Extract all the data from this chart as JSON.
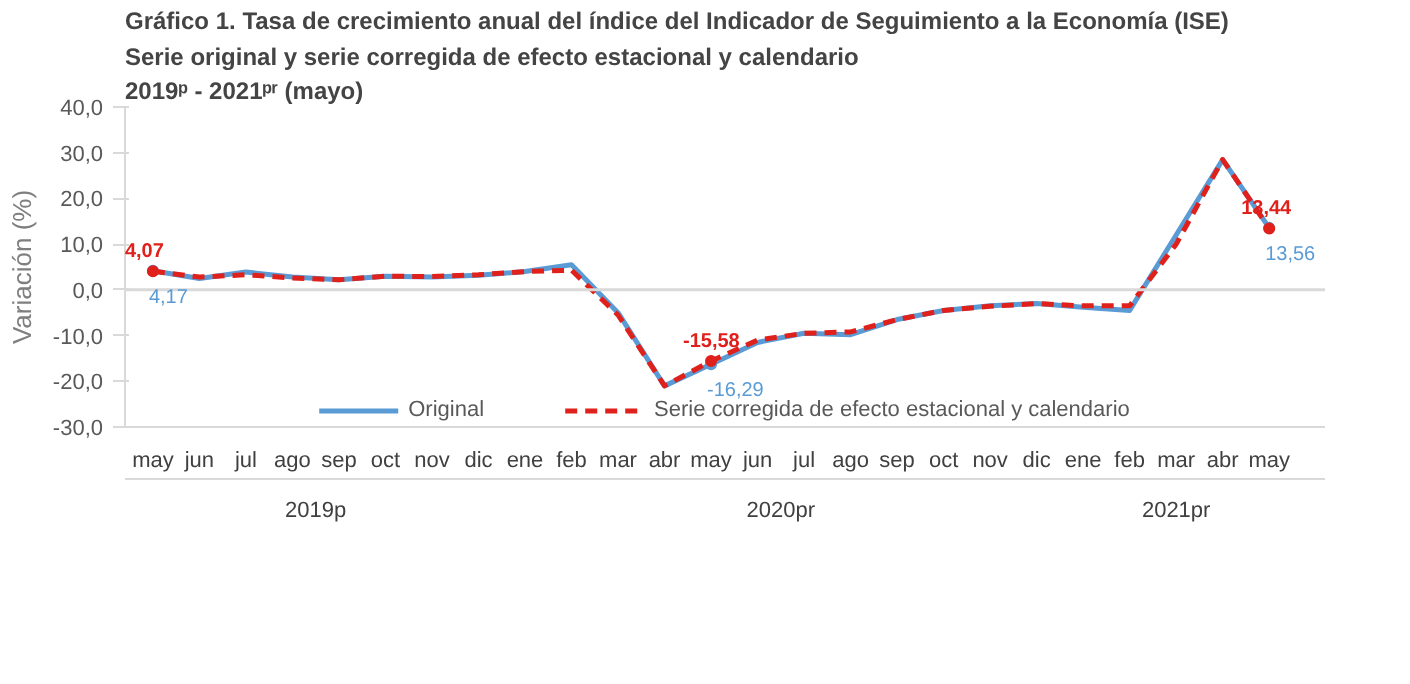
{
  "chart_data": {
    "type": "line",
    "title": "Gráfico 1. Tasa de crecimiento anual del índice del Indicador de Seguimiento a la Economía (ISE)",
    "subtitle": "Serie original y serie corregida de efecto estacional y calendario\n2019ᵖ - 2021ᵖʳ (mayo)",
    "ylabel": "Variación (%)",
    "categories": [
      "may",
      "jun",
      "jul",
      "ago",
      "sep",
      "oct",
      "nov",
      "dic",
      "ene",
      "feb",
      "mar",
      "abr",
      "may",
      "jun",
      "jul",
      "ago",
      "sep",
      "oct",
      "nov",
      "dic",
      "ene",
      "feb",
      "mar",
      "abr",
      "may"
    ],
    "annotations": [
      "2019p",
      "2020pr",
      "2021pr"
    ],
    "ylim": [
      -30,
      40
    ],
    "yticks": [
      {
        "value": -30,
        "label": "-30,0"
      },
      {
        "value": -20,
        "label": "-20,0"
      },
      {
        "value": -10,
        "label": "-10,0"
      },
      {
        "value": 0,
        "label": "0,0"
      },
      {
        "value": 10,
        "label": "10,0"
      },
      {
        "value": 20,
        "label": "20,0"
      },
      {
        "value": 30,
        "label": "30,0"
      },
      {
        "value": 40,
        "label": "40,0"
      }
    ],
    "ref_lines": [
      {
        "axis": "y",
        "value": 0,
        "color": "#d9d9d9"
      }
    ],
    "legend": "bottom",
    "series": [
      {
        "name": "Original",
        "color": "#5b9bd5",
        "line_style": "solid",
        "values": [
          4.17,
          2.5,
          3.9,
          2.8,
          2.2,
          3.0,
          2.8,
          3.2,
          4.0,
          5.5,
          -5,
          -21,
          -16.29,
          -11.5,
          -9.5,
          -9.8,
          -6.5,
          -4.5,
          -3.5,
          -3.0,
          -3.8,
          -4.5,
          12,
          28.5,
          13.56
        ],
        "value_labels": [
          "4,17",
          null,
          null,
          null,
          null,
          null,
          null,
          null,
          null,
          null,
          null,
          null,
          "-16,29",
          null,
          null,
          null,
          null,
          null,
          null,
          null,
          null,
          null,
          null,
          null,
          "13,56"
        ]
      },
      {
        "name": "Serie corregida de efecto estacional y calendario",
        "color": "#e0201b",
        "line_style": "dashed",
        "values": [
          4.07,
          2.8,
          3.3,
          2.6,
          2.2,
          3.0,
          2.9,
          3.3,
          4.0,
          4.3,
          -5.5,
          -21,
          -15.58,
          -11,
          -9.5,
          -9.2,
          -6.5,
          -4.5,
          -3.6,
          -3.0,
          -3.5,
          -3.5,
          10,
          28.5,
          13.44
        ],
        "value_labels": [
          "4,07",
          null,
          null,
          null,
          null,
          null,
          null,
          null,
          null,
          null,
          null,
          null,
          "-15,58",
          null,
          null,
          null,
          null,
          null,
          null,
          null,
          null,
          null,
          null,
          null,
          "13,44"
        ]
      }
    ]
  }
}
